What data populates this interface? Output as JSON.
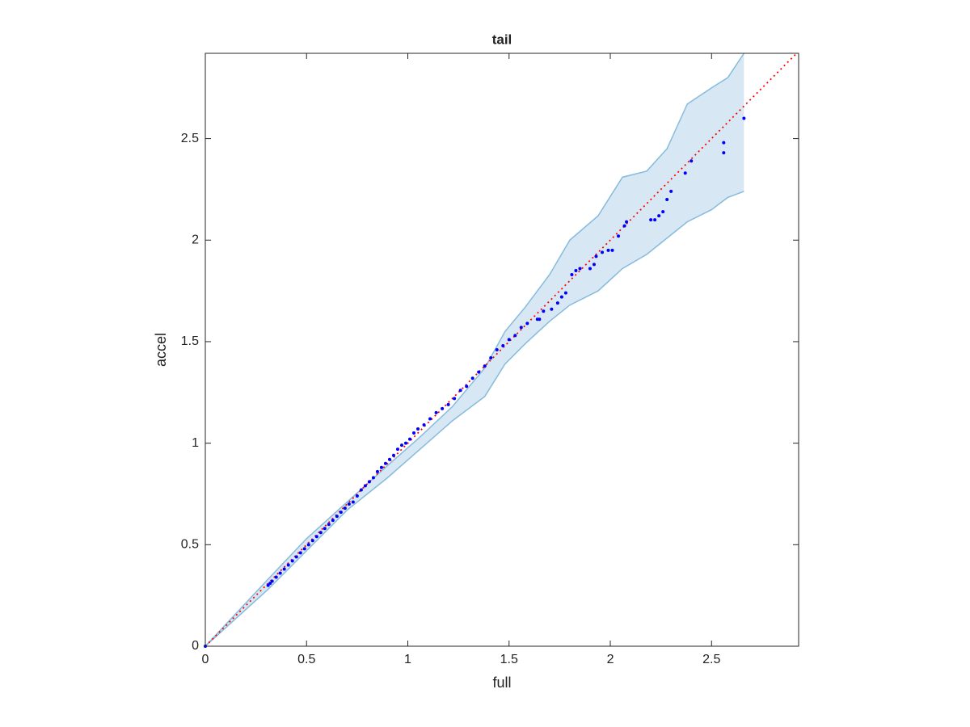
{
  "chart_data": {
    "type": "scatter",
    "title": "tail",
    "x_label": "full",
    "y_label": "accel",
    "xlim": [
      0,
      2.93
    ],
    "ylim": [
      0,
      2.92
    ],
    "xticks": [
      0,
      0.5,
      1,
      1.5,
      2,
      2.5
    ],
    "yticks": [
      0,
      0.5,
      1,
      1.5,
      2,
      2.5
    ],
    "color": "#0000ff",
    "x": [
      0,
      0.31,
      0.32,
      0.33,
      0.35,
      0.37,
      0.39,
      0.41,
      0.43,
      0.45,
      0.47,
      0.49,
      0.51,
      0.53,
      0.55,
      0.57,
      0.59,
      0.61,
      0.63,
      0.65,
      0.67,
      0.69,
      0.71,
      0.73,
      0.75,
      0.77,
      0.79,
      0.81,
      0.83,
      0.85,
      0.87,
      0.89,
      0.91,
      0.93,
      0.95,
      0.97,
      0.99,
      1.01,
      1.03,
      1.05,
      1.08,
      1.11,
      1.14,
      1.17,
      1.2,
      1.23,
      1.26,
      1.29,
      1.32,
      1.35,
      1.38,
      1.41,
      1.44,
      1.47,
      1.5,
      1.53,
      1.56,
      1.59,
      1.64,
      1.65,
      1.67,
      1.71,
      1.74,
      1.76,
      1.78,
      1.81,
      1.83,
      1.85,
      1.9,
      1.92,
      1.93,
      1.96,
      1.99,
      2.01,
      2.04,
      2.07,
      2.08,
      2.2,
      2.22,
      2.24,
      2.26,
      2.28,
      2.3,
      2.37,
      2.4,
      2.56,
      2.56,
      2.66
    ],
    "y": [
      0,
      0.3,
      0.31,
      0.32,
      0.34,
      0.36,
      0.38,
      0.4,
      0.42,
      0.44,
      0.46,
      0.48,
      0.5,
      0.52,
      0.54,
      0.56,
      0.58,
      0.6,
      0.62,
      0.64,
      0.66,
      0.68,
      0.7,
      0.71,
      0.74,
      0.77,
      0.79,
      0.81,
      0.83,
      0.86,
      0.88,
      0.9,
      0.92,
      0.94,
      0.97,
      0.99,
      1.0,
      1.02,
      1.05,
      1.07,
      1.09,
      1.12,
      1.15,
      1.17,
      1.19,
      1.22,
      1.26,
      1.28,
      1.32,
      1.35,
      1.38,
      1.42,
      1.46,
      1.48,
      1.51,
      1.53,
      1.57,
      1.59,
      1.61,
      1.61,
      1.65,
      1.66,
      1.69,
      1.72,
      1.74,
      1.83,
      1.85,
      1.86,
      1.86,
      1.88,
      1.92,
      1.94,
      1.95,
      1.95,
      2.02,
      2.07,
      2.09,
      2.1,
      2.1,
      2.12,
      2.14,
      2.2,
      2.24,
      2.33,
      2.39,
      2.43,
      2.48,
      2.6
    ],
    "reference_line": {
      "color": "#ff0000",
      "x": [
        0,
        2.93
      ],
      "y": [
        0,
        2.93
      ]
    },
    "band": {
      "fill": "#d7e8f4",
      "edge_color": "#86bbdc",
      "x": [
        0,
        0.31,
        0.5,
        0.7,
        0.9,
        1.06,
        1.22,
        1.38,
        1.48,
        1.58,
        1.7,
        1.8,
        1.94,
        2.06,
        2.18,
        2.28,
        2.38,
        2.5,
        2.58,
        2.66
      ],
      "upper": [
        0,
        0.33,
        0.53,
        0.71,
        0.89,
        1.03,
        1.18,
        1.37,
        1.55,
        1.67,
        1.83,
        2.0,
        2.12,
        2.31,
        2.34,
        2.45,
        2.67,
        2.75,
        2.8,
        2.92
      ],
      "lower": [
        0,
        0.28,
        0.47,
        0.67,
        0.83,
        0.97,
        1.11,
        1.23,
        1.39,
        1.49,
        1.6,
        1.68,
        1.75,
        1.86,
        1.93,
        2.01,
        2.09,
        2.15,
        2.21,
        2.24
      ]
    }
  }
}
